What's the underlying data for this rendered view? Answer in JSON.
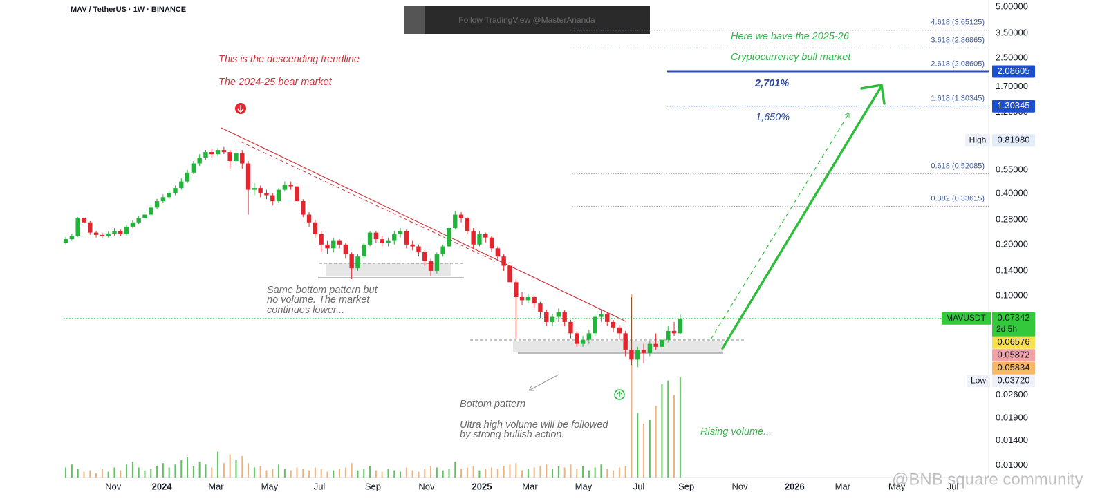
{
  "chart_data": {
    "type": "candlestick",
    "title": "MAV / TetherUS · 1W · BINANCE",
    "watermark": "Follow TradingView @MasterAnanda",
    "x": [
      0,
      1,
      2,
      3,
      4,
      5,
      6,
      7,
      8,
      9,
      10,
      11,
      12,
      13,
      14,
      15,
      16,
      17,
      18,
      19,
      20,
      21,
      22,
      23,
      24,
      25,
      26,
      27,
      28,
      29,
      30,
      31,
      32,
      33,
      34,
      35,
      36,
      37,
      38,
      39,
      40,
      41,
      42,
      43,
      44,
      45,
      46,
      47,
      48,
      49,
      50,
      51,
      52,
      53,
      54,
      55,
      56,
      57,
      58,
      59,
      60,
      61,
      62,
      63,
      64,
      65,
      66,
      67,
      68,
      69,
      70,
      71,
      72,
      73,
      74,
      75,
      76,
      77,
      78,
      79,
      80,
      81,
      82,
      83,
      84,
      85,
      86,
      87,
      88,
      89,
      90,
      91,
      92,
      93,
      94,
      95,
      96,
      97,
      98,
      99,
      100,
      101
    ],
    "open": [
      0.205,
      0.215,
      0.225,
      0.285,
      0.27,
      0.235,
      0.228,
      0.225,
      0.232,
      0.24,
      0.23,
      0.255,
      0.27,
      0.285,
      0.3,
      0.33,
      0.36,
      0.38,
      0.4,
      0.43,
      0.47,
      0.53,
      0.6,
      0.65,
      0.7,
      0.68,
      0.72,
      0.7,
      0.62,
      0.69,
      0.6,
      0.42,
      0.43,
      0.4,
      0.39,
      0.36,
      0.42,
      0.45,
      0.44,
      0.36,
      0.3,
      0.27,
      0.23,
      0.2,
      0.19,
      0.21,
      0.2,
      0.175,
      0.145,
      0.17,
      0.2,
      0.235,
      0.215,
      0.205,
      0.21,
      0.23,
      0.24,
      0.2,
      0.195,
      0.18,
      0.16,
      0.14,
      0.175,
      0.195,
      0.25,
      0.3,
      0.285,
      0.24,
      0.2,
      0.23,
      0.22,
      0.19,
      0.17,
      0.15,
      0.12,
      0.098,
      0.094,
      0.098,
      0.09,
      0.08,
      0.07,
      0.075,
      0.08,
      0.07,
      0.06,
      0.052,
      0.055,
      0.06,
      0.075,
      0.078,
      0.07,
      0.065,
      0.06,
      0.048,
      0.042,
      0.048,
      0.046,
      0.052,
      0.05,
      0.055,
      0.062,
      0.06
    ],
    "high": [
      0.222,
      0.232,
      0.29,
      0.292,
      0.275,
      0.24,
      0.235,
      0.238,
      0.25,
      0.245,
      0.262,
      0.278,
      0.295,
      0.31,
      0.34,
      0.372,
      0.395,
      0.415,
      0.445,
      0.49,
      0.55,
      0.62,
      0.68,
      0.72,
      0.73,
      0.74,
      0.75,
      0.72,
      0.82,
      0.72,
      0.62,
      0.46,
      0.445,
      0.42,
      0.4,
      0.43,
      0.47,
      0.47,
      0.45,
      0.37,
      0.31,
      0.28,
      0.24,
      0.21,
      0.22,
      0.215,
      0.205,
      0.18,
      0.175,
      0.205,
      0.24,
      0.24,
      0.225,
      0.22,
      0.24,
      0.25,
      0.245,
      0.21,
      0.2,
      0.185,
      0.165,
      0.18,
      0.2,
      0.26,
      0.315,
      0.31,
      0.29,
      0.25,
      0.24,
      0.235,
      0.225,
      0.195,
      0.175,
      0.155,
      0.125,
      0.105,
      0.102,
      0.1,
      0.092,
      0.083,
      0.078,
      0.084,
      0.082,
      0.072,
      0.062,
      0.058,
      0.063,
      0.077,
      0.082,
      0.08,
      0.072,
      0.067,
      0.062,
      0.098,
      0.05,
      0.052,
      0.054,
      0.06,
      0.078,
      0.066,
      0.07,
      0.078
    ],
    "low": [
      0.2,
      0.21,
      0.222,
      0.262,
      0.228,
      0.22,
      0.218,
      0.22,
      0.226,
      0.224,
      0.226,
      0.25,
      0.264,
      0.278,
      0.295,
      0.322,
      0.35,
      0.37,
      0.39,
      0.42,
      0.46,
      0.52,
      0.58,
      0.63,
      0.65,
      0.66,
      0.68,
      0.56,
      0.6,
      0.56,
      0.3,
      0.39,
      0.38,
      0.37,
      0.34,
      0.35,
      0.41,
      0.42,
      0.35,
      0.29,
      0.255,
      0.22,
      0.18,
      0.175,
      0.18,
      0.19,
      0.165,
      0.125,
      0.14,
      0.165,
      0.195,
      0.205,
      0.195,
      0.195,
      0.2,
      0.22,
      0.19,
      0.185,
      0.17,
      0.15,
      0.13,
      0.135,
      0.17,
      0.19,
      0.245,
      0.27,
      0.23,
      0.19,
      0.195,
      0.205,
      0.18,
      0.16,
      0.14,
      0.115,
      0.056,
      0.088,
      0.09,
      0.085,
      0.074,
      0.066,
      0.066,
      0.07,
      0.066,
      0.056,
      0.05,
      0.05,
      0.052,
      0.058,
      0.07,
      0.066,
      0.061,
      0.055,
      0.044,
      0.039,
      0.038,
      0.04,
      0.044,
      0.048,
      0.048,
      0.053,
      0.058,
      0.059
    ],
    "close": [
      0.215,
      0.225,
      0.285,
      0.27,
      0.235,
      0.228,
      0.225,
      0.232,
      0.24,
      0.23,
      0.255,
      0.27,
      0.285,
      0.3,
      0.33,
      0.36,
      0.38,
      0.4,
      0.43,
      0.47,
      0.53,
      0.6,
      0.65,
      0.7,
      0.68,
      0.72,
      0.7,
      0.62,
      0.69,
      0.6,
      0.42,
      0.43,
      0.4,
      0.39,
      0.36,
      0.42,
      0.45,
      0.44,
      0.36,
      0.3,
      0.27,
      0.23,
      0.2,
      0.19,
      0.21,
      0.2,
      0.175,
      0.145,
      0.17,
      0.2,
      0.235,
      0.215,
      0.205,
      0.21,
      0.23,
      0.24,
      0.2,
      0.195,
      0.18,
      0.16,
      0.14,
      0.175,
      0.195,
      0.25,
      0.3,
      0.285,
      0.24,
      0.2,
      0.23,
      0.22,
      0.19,
      0.17,
      0.15,
      0.12,
      0.098,
      0.094,
      0.098,
      0.09,
      0.08,
      0.07,
      0.075,
      0.08,
      0.07,
      0.06,
      0.052,
      0.055,
      0.06,
      0.075,
      0.078,
      0.07,
      0.065,
      0.06,
      0.048,
      0.042,
      0.048,
      0.046,
      0.052,
      0.05,
      0.055,
      0.062,
      0.06,
      0.0734
    ],
    "volume": [
      14,
      18,
      12,
      8,
      10,
      6,
      12,
      8,
      14,
      10,
      18,
      22,
      14,
      10,
      12,
      16,
      20,
      14,
      18,
      24,
      28,
      16,
      22,
      18,
      14,
      36,
      20,
      32,
      24,
      30,
      20,
      14,
      16,
      10,
      12,
      18,
      12,
      10,
      14,
      12,
      10,
      14,
      12,
      8,
      10,
      12,
      14,
      20,
      10,
      12,
      16,
      10,
      8,
      12,
      10,
      8,
      14,
      10,
      8,
      12,
      16,
      14,
      10,
      12,
      22,
      12,
      14,
      16,
      10,
      12,
      14,
      12,
      16,
      18,
      20,
      10,
      12,
      14,
      16,
      18,
      12,
      16,
      14,
      18,
      12,
      16,
      10,
      14,
      18,
      12,
      10,
      14,
      16,
      255,
      90,
      75,
      80,
      100,
      130,
      135,
      115,
      140
    ],
    "up_color": "#22b33a",
    "down_color": "#e3262d",
    "volume_up_color": "#5cc45c",
    "volume_down_color": "#f0b27c",
    "xlim": [
      -0.35,
      151.7
    ],
    "xticks": [
      {
        "value": 7.8,
        "label": "Nov"
      },
      {
        "value": 15.8,
        "label": "2024"
      },
      {
        "value": 24.7,
        "label": "Mar"
      },
      {
        "value": 33.5,
        "label": "May"
      },
      {
        "value": 41.7,
        "label": "Jul"
      },
      {
        "value": 50.5,
        "label": "Sep"
      },
      {
        "value": 59.3,
        "label": "Nov"
      },
      {
        "value": 68.4,
        "label": "2025"
      },
      {
        "value": 76.3,
        "label": "Mar"
      },
      {
        "value": 85.1,
        "label": "May"
      },
      {
        "value": 94.2,
        "label": "Jul"
      },
      {
        "value": 102,
        "label": "Sep"
      },
      {
        "value": 110.8,
        "label": "Nov"
      },
      {
        "value": 119.8,
        "label": "2026"
      },
      {
        "value": 127.7,
        "label": "Mar"
      },
      {
        "value": 136.6,
        "label": "May"
      },
      {
        "value": 145.8,
        "label": "Jul"
      }
    ],
    "ylim": [
      0.0085,
      5.5
    ],
    "log_y": true,
    "yticks": [
      {
        "value": 5,
        "label": "5.00000"
      },
      {
        "value": 3.5,
        "label": "3.50000"
      },
      {
        "value": 2.5,
        "label": "2.50000"
      },
      {
        "value": 1.7,
        "label": "1.70000"
      },
      {
        "value": 1.2,
        "label": "1.20000"
      },
      {
        "value": 0.55,
        "label": "0.55000"
      },
      {
        "value": 0.4,
        "label": "0.40000"
      },
      {
        "value": 0.28,
        "label": "0.28000"
      },
      {
        "value": 0.2,
        "label": "0.20000"
      },
      {
        "value": 0.14,
        "label": "0.14000"
      },
      {
        "value": 0.1,
        "label": "0.10000"
      },
      {
        "value": 0.026,
        "label": "0.02600"
      },
      {
        "value": 0.019,
        "label": "0.01900"
      },
      {
        "value": 0.014,
        "label": "0.01400"
      },
      {
        "value": 0.01,
        "label": "0.01000"
      }
    ],
    "fib_levels": [
      {
        "label": "4.618 (3.65125)",
        "value": 3.65125,
        "color": "#9aa3b0"
      },
      {
        "label": "3.618 (2.86865)",
        "value": 2.86865,
        "color": "#9aa3b0"
      },
      {
        "label": "2.618 (2.08605)",
        "value": 2.08605,
        "color": "#1c4fd0",
        "tag": "2.08605"
      },
      {
        "label": "1.618 (1.30345)",
        "value": 1.30345,
        "color": "#1c4fd0",
        "tag": "1.30345"
      },
      {
        "label": "0.618 (0.52085)",
        "value": 0.52085,
        "color": "#9aa3b0"
      },
      {
        "label": "0.382 (0.33615)",
        "value": 0.33615,
        "color": "#9aa3b0"
      }
    ],
    "high_tag": {
      "name": "High",
      "value": 0.8198,
      "label": "0.81980"
    },
    "last_price": {
      "symbol": "MAVUSDT",
      "value": 0.07342,
      "label": "0.07342",
      "countdown": "2d 5h",
      "color": "#34c93c"
    },
    "ma_tags": [
      {
        "value": 0.06576,
        "label": "0.06576",
        "color": "#f7e04b"
      },
      {
        "value": 0.05872,
        "label": "0.05872",
        "color": "#f3a3a5"
      },
      {
        "value": 0.05834,
        "label": "0.05834",
        "color": "#f6b866"
      }
    ],
    "low_tag": {
      "name": "Low",
      "value": 0.0372,
      "label": "0.03720"
    },
    "annotations": {
      "trendline": [
        "This is the descending trendline",
        "The 2024-25 bear market"
      ],
      "bull": [
        "Here we have the 2025-26",
        "Cryptocurrency bull market"
      ],
      "target_1": "2,701%",
      "target_2": "1,650%",
      "first_bottom": [
        "Same bottom pattern but",
        "no volume. The market",
        "continues lower..."
      ],
      "bottom": [
        "Bottom pattern",
        "Ultra high volume will be followed",
        "by strong bullish action."
      ],
      "rising_volume": "Rising volume..."
    }
  },
  "footer_watermark": "@BNB square community"
}
